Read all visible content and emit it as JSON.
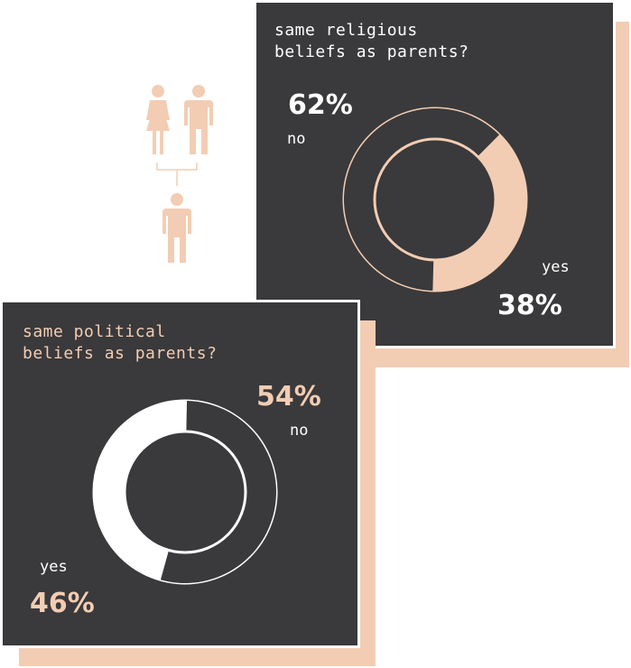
{
  "colors": {
    "card": "#3a393b",
    "peach": "#f2cdb3",
    "white": "#ffffff"
  },
  "icons": {
    "family": [
      "mother-icon",
      "father-icon",
      "child-icon"
    ]
  },
  "chart_data": [
    {
      "type": "pie",
      "title": "same religious\nbeliefs as parents?",
      "categories": [
        "no",
        "yes"
      ],
      "values": [
        62,
        38
      ],
      "labels": [
        "62%",
        "38%"
      ],
      "colors": [
        "#3a393b",
        "#f2cdb3"
      ],
      "ring_color": "#f2cdb3"
    },
    {
      "type": "pie",
      "title": "same political\nbeliefs as parents?",
      "categories": [
        "no",
        "yes"
      ],
      "values": [
        54,
        46
      ],
      "labels": [
        "54%",
        "46%"
      ],
      "colors": [
        "#3a393b",
        "#ffffff"
      ],
      "ring_color": "#ffffff"
    }
  ]
}
